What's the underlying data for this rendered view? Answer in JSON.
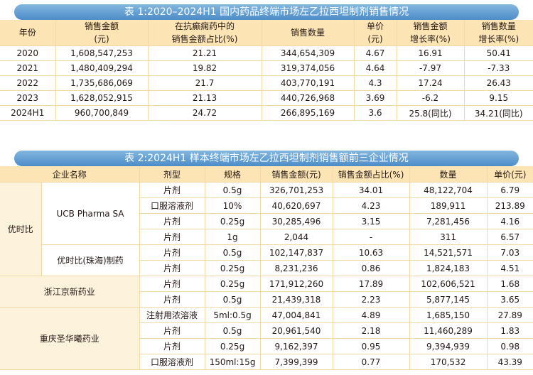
{
  "table1": {
    "title": "表 1:2020–2024H1 国内药品终端市场左乙拉西坦制剂销售情况",
    "headers": [
      [
        "年份"
      ],
      [
        "销售金额",
        "(元)"
      ],
      [
        "在抗癫痫药中的",
        "销售金额占比(%)"
      ],
      [
        "销售数量"
      ],
      [
        "单价",
        "(元)"
      ],
      [
        "销售金额",
        "增长率(%)"
      ],
      [
        "销售数量",
        "增长率(%)"
      ]
    ],
    "rows": [
      [
        "2020",
        "1,608,547,253",
        "21.21",
        "344,654,309",
        "4.67",
        "16.91",
        "50.41"
      ],
      [
        "2021",
        "1,480,409,294",
        "19.82",
        "319,374,056",
        "4.64",
        "-7.97",
        "-7.33"
      ],
      [
        "2022",
        "1,735,686,069",
        "21.7",
        "403,770,191",
        "4.3",
        "17.24",
        "26.43"
      ],
      [
        "2023",
        "1,628,052,915",
        "21.13",
        "440,726,968",
        "3.69",
        "-6.2",
        "9.15"
      ],
      [
        "2024H1",
        "960,700,849",
        "24.72",
        "266,895,169",
        "3.6",
        "25.8(同比)",
        "34.21(同比)"
      ]
    ]
  },
  "table2": {
    "title": "表 2:2024H1 样本终端市场左乙拉西坦制剂销售额前三企业情况",
    "headers": [
      "企业名称",
      "剂型",
      "规格",
      "销售金额(元)",
      "销售金额占比(%)",
      "数量",
      "单价(元)"
    ],
    "companies": {
      "c1": "优时比",
      "c1a": "UCB Pharma SA",
      "c1b": "优时比(珠海)制药",
      "c2": "浙江京新药业",
      "c3": "重庆圣华曦药业"
    },
    "rows": [
      [
        "片剂",
        "0.5g",
        "326,701,253",
        "34.01",
        "48,122,704",
        "6.79"
      ],
      [
        "口服溶液剂",
        "10%",
        "40,620,697",
        "4.23",
        "189,911",
        "213.89"
      ],
      [
        "片剂",
        "0.25g",
        "30,285,496",
        "3.15",
        "7,281,456",
        "4.16"
      ],
      [
        "片剂",
        "1g",
        "2,044",
        "-",
        "311",
        "6.57"
      ],
      [
        "片剂",
        "0.5g",
        "102,147,837",
        "10.63",
        "14,521,571",
        "7.03"
      ],
      [
        "片剂",
        "0.25g",
        "8,231,236",
        "0.86",
        "1,824,183",
        "4.51"
      ],
      [
        "片剂",
        "0.25g",
        "171,912,260",
        "17.89",
        "102,606,521",
        "1.68"
      ],
      [
        "片剂",
        "0.5g",
        "21,439,318",
        "2.23",
        "5,877,145",
        "3.65"
      ],
      [
        "注射用浓溶液",
        "5ml:0.5g",
        "47,004,841",
        "4.89",
        "1,685,150",
        "27.89"
      ],
      [
        "片剂",
        "0.5g",
        "20,961,540",
        "2.18",
        "11,460,289",
        "1.83"
      ],
      [
        "片剂",
        "0.25g",
        "9,162,397",
        "0.95",
        "9,394,939",
        "0.98"
      ],
      [
        "口服溶液剂",
        "150ml:15g",
        "7,399,399",
        "0.77",
        "170,532",
        "43.39"
      ]
    ]
  }
}
